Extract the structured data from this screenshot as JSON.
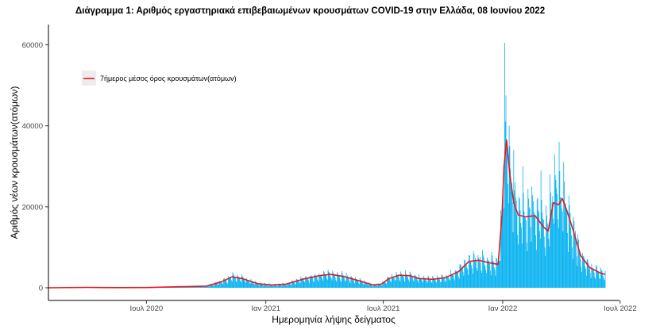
{
  "chart_data": {
    "type": "bar",
    "title": "Διάγραμμα 1: Αριθμός εργαστηριακά επιβεβαιωμένων κρουσμάτων COVID-19 στην Ελλάδα, 08 Ιουνίου 2022",
    "xlabel": "Ημερομηνία λήψης δείγματος",
    "ylabel": "Αριθμός νέων κρουσμάτων(ατόμων)",
    "ylim": [
      0,
      65000
    ],
    "xlim": [
      "2020-02-01",
      "2022-06-30"
    ],
    "x_ticks": [
      {
        "date": "2020-07-01",
        "label": "Ιουλ 2020"
      },
      {
        "date": "2021-01-01",
        "label": "Ιαν 2021"
      },
      {
        "date": "2021-07-01",
        "label": "Ιουλ 2021"
      },
      {
        "date": "2022-01-01",
        "label": "Ιαν 2022"
      },
      {
        "date": "2022-07-01",
        "label": "Ιουλ 2022"
      }
    ],
    "y_ticks": [
      0,
      20000,
      40000,
      60000
    ],
    "y_tick_labels": [
      "0",
      "20000",
      "40000",
      "60000"
    ],
    "grid": false,
    "legend_position": "top-left",
    "series": [
      {
        "name": "",
        "kind": "bars",
        "color": "#00b0f0",
        "date_start": "2020-02-26",
        "date_end": "2022-06-08",
        "weekly_profile_points": [
          [
            "2020-02-26",
            0
          ],
          [
            "2020-04-01",
            100
          ],
          [
            "2020-05-15",
            50
          ],
          [
            "2020-07-01",
            60
          ],
          [
            "2020-08-20",
            250
          ],
          [
            "2020-10-01",
            400
          ],
          [
            "2020-10-25",
            1500
          ],
          [
            "2020-11-10",
            2700
          ],
          [
            "2020-11-25",
            2300
          ],
          [
            "2020-12-20",
            1000
          ],
          [
            "2021-01-10",
            700
          ],
          [
            "2021-02-01",
            900
          ],
          [
            "2021-03-01",
            2200
          ],
          [
            "2021-03-25",
            3000
          ],
          [
            "2021-04-10",
            3300
          ],
          [
            "2021-05-01",
            2800
          ],
          [
            "2021-05-25",
            1700
          ],
          [
            "2021-06-15",
            700
          ],
          [
            "2021-06-28",
            900
          ],
          [
            "2021-07-10",
            2300
          ],
          [
            "2021-07-25",
            3100
          ],
          [
            "2021-08-10",
            3000
          ],
          [
            "2021-08-25",
            2300
          ],
          [
            "2021-09-15",
            2100
          ],
          [
            "2021-10-05",
            2500
          ],
          [
            "2021-10-25",
            4000
          ],
          [
            "2021-11-10",
            6500
          ],
          [
            "2021-11-25",
            6800
          ],
          [
            "2021-12-10",
            6200
          ],
          [
            "2021-12-25",
            5800
          ],
          [
            "2021-12-31",
            18000
          ],
          [
            "2022-01-03",
            30000
          ],
          [
            "2022-01-07",
            34000
          ],
          [
            "2022-01-12",
            28000
          ],
          [
            "2022-01-18",
            21000
          ],
          [
            "2022-01-25",
            18000
          ],
          [
            "2022-02-05",
            17500
          ],
          [
            "2022-02-20",
            17800
          ],
          [
            "2022-03-05",
            15000
          ],
          [
            "2022-03-12",
            14000
          ],
          [
            "2022-03-20",
            21000
          ],
          [
            "2022-03-28",
            20500
          ],
          [
            "2022-04-03",
            21500
          ],
          [
            "2022-04-10",
            19000
          ],
          [
            "2022-04-20",
            14000
          ],
          [
            "2022-05-01",
            8000
          ],
          [
            "2022-05-15",
            5000
          ],
          [
            "2022-06-01",
            3600
          ],
          [
            "2022-06-08",
            3300
          ]
        ],
        "notable_days": [
          [
            "2022-01-04",
            60500
          ],
          [
            "2022-01-05",
            41000
          ],
          [
            "2022-01-06",
            47500
          ],
          [
            "2022-01-08",
            36000
          ],
          [
            "2022-01-11",
            40000
          ],
          [
            "2022-01-12",
            35000
          ],
          [
            "2022-01-18",
            34000
          ],
          [
            "2022-02-01",
            30000
          ],
          [
            "2022-02-15",
            25000
          ],
          [
            "2022-03-01",
            29000
          ],
          [
            "2022-03-15",
            28000
          ],
          [
            "2022-03-22",
            33000
          ],
          [
            "2022-03-29",
            36000
          ],
          [
            "2022-04-05",
            31000
          ]
        ]
      },
      {
        "name": "7ήμερος μέσος όρος κρουσμάτων(ατόμων)",
        "kind": "line",
        "color": "#e8181d",
        "points": [
          [
            "2020-02-01",
            0
          ],
          [
            "2020-04-01",
            100
          ],
          [
            "2020-05-15",
            30
          ],
          [
            "2020-07-01",
            60
          ],
          [
            "2020-08-20",
            250
          ],
          [
            "2020-10-01",
            400
          ],
          [
            "2020-10-25",
            1500
          ],
          [
            "2020-11-10",
            2700
          ],
          [
            "2020-11-25",
            2300
          ],
          [
            "2020-12-20",
            1000
          ],
          [
            "2021-01-10",
            700
          ],
          [
            "2021-02-01",
            900
          ],
          [
            "2021-03-01",
            2200
          ],
          [
            "2021-03-25",
            3000
          ],
          [
            "2021-04-10",
            3300
          ],
          [
            "2021-05-01",
            2800
          ],
          [
            "2021-05-25",
            1700
          ],
          [
            "2021-06-15",
            700
          ],
          [
            "2021-06-28",
            900
          ],
          [
            "2021-07-10",
            2300
          ],
          [
            "2021-07-25",
            3100
          ],
          [
            "2021-08-10",
            3000
          ],
          [
            "2021-08-25",
            2300
          ],
          [
            "2021-09-15",
            2100
          ],
          [
            "2021-10-05",
            2500
          ],
          [
            "2021-10-25",
            4000
          ],
          [
            "2021-11-10",
            6500
          ],
          [
            "2021-11-25",
            6800
          ],
          [
            "2021-12-10",
            6200
          ],
          [
            "2021-12-25",
            5800
          ],
          [
            "2021-12-31",
            18000
          ],
          [
            "2022-01-03",
            30000
          ],
          [
            "2022-01-07",
            36500
          ],
          [
            "2022-01-12",
            28000
          ],
          [
            "2022-01-18",
            21000
          ],
          [
            "2022-01-25",
            18000
          ],
          [
            "2022-02-05",
            17500
          ],
          [
            "2022-02-20",
            17800
          ],
          [
            "2022-03-05",
            15000
          ],
          [
            "2022-03-12",
            14000
          ],
          [
            "2022-03-20",
            21000
          ],
          [
            "2022-03-28",
            20500
          ],
          [
            "2022-04-03",
            22000
          ],
          [
            "2022-04-10",
            19000
          ],
          [
            "2022-04-20",
            14000
          ],
          [
            "2022-05-01",
            8000
          ],
          [
            "2022-05-15",
            5000
          ],
          [
            "2022-06-01",
            3600
          ],
          [
            "2022-06-08",
            3300
          ]
        ]
      }
    ]
  }
}
